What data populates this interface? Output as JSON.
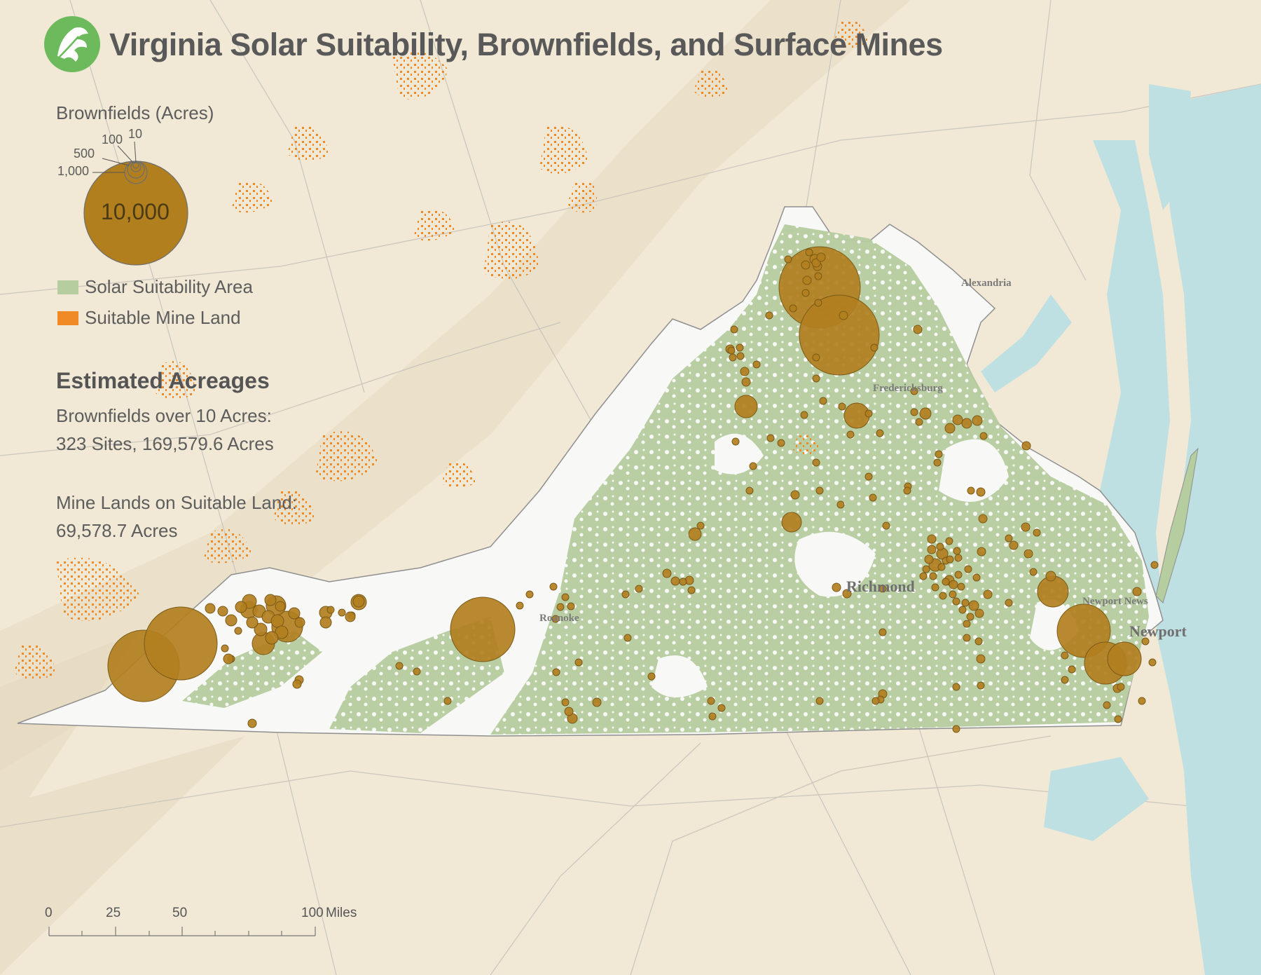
{
  "title": "Virginia Solar Suitability, Brownfields, and Surface Mines",
  "legend": {
    "brownfields_heading": "Brownfields (Acres)",
    "size_labels": [
      "10",
      "100",
      "500",
      "1,000",
      "10,000"
    ],
    "solar_label": "Solar Suitability Area",
    "mine_label": "Suitable Mine Land"
  },
  "stats": {
    "heading": "Estimated Acreages",
    "brownfields_line1": "Brownfields over 10 Acres:",
    "brownfields_line2": "323 Sites, 169,579.6 Acres",
    "mines_line1": "Mine Lands on Suitable Land:",
    "mines_line2": "69,578.7 Acres"
  },
  "cities": [
    "Alexandria",
    "Fredericksburg",
    "Richmond",
    "Roanoke",
    "Newport News",
    "Newport"
  ],
  "scale": {
    "ticks": [
      "0",
      "25",
      "50",
      "100"
    ],
    "unit": "Miles"
  },
  "colors": {
    "background": "#f1e9d6",
    "virginia": "#f8f8f6",
    "solar": "#b6cd9f",
    "mine": "#f08a24",
    "brownfield": "#b27f1f",
    "water": "#bfe0e3",
    "road": "#c8c4bc"
  }
}
